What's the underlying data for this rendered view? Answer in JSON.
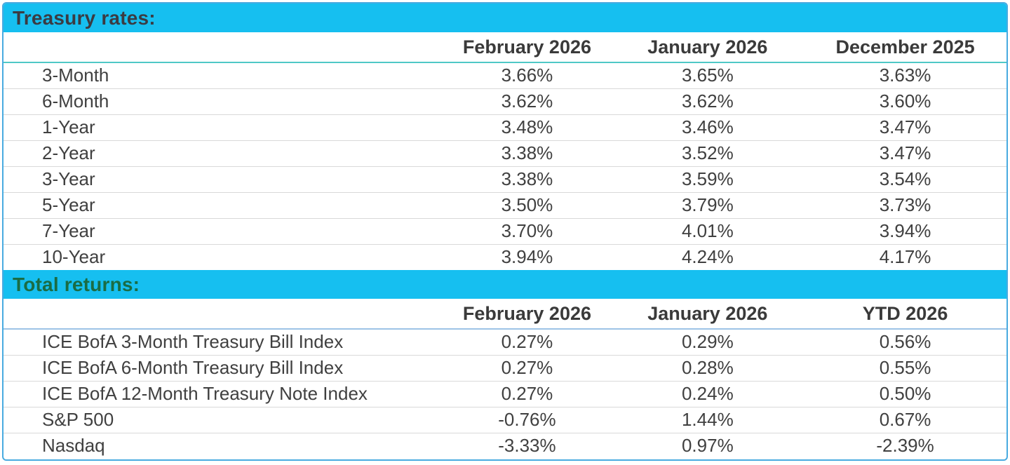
{
  "meta": {
    "band_color": "#16bff0",
    "outer_border_color": "#49abe0",
    "treasury_title_color": "#3b3b42",
    "returns_title_color": "#1a6c44",
    "treasury_header_divider_color": "#4fc8c6",
    "returns_header_divider_color": "#9dc3e6",
    "row_divider_color": "#d9d9d9"
  },
  "treasury": {
    "section_title": "Treasury rates:",
    "columns": [
      "February 2026",
      "January 2026",
      "December 2025"
    ],
    "rows": [
      {
        "label": "3-Month",
        "values": [
          "3.66%",
          "3.65%",
          "3.63%"
        ]
      },
      {
        "label": "6-Month",
        "values": [
          "3.62%",
          "3.62%",
          "3.60%"
        ]
      },
      {
        "label": "1-Year",
        "values": [
          "3.48%",
          "3.46%",
          "3.47%"
        ]
      },
      {
        "label": "2-Year",
        "values": [
          "3.38%",
          "3.52%",
          "3.47%"
        ]
      },
      {
        "label": "3-Year",
        "values": [
          "3.38%",
          "3.59%",
          "3.54%"
        ]
      },
      {
        "label": "5-Year",
        "values": [
          "3.50%",
          "3.79%",
          "3.73%"
        ]
      },
      {
        "label": "7-Year",
        "values": [
          "3.70%",
          "4.01%",
          "3.94%"
        ]
      },
      {
        "label": "10-Year",
        "values": [
          "3.94%",
          "4.24%",
          "4.17%"
        ]
      }
    ]
  },
  "returns": {
    "section_title": "Total returns:",
    "columns": [
      "February 2026",
      "January 2026",
      "YTD 2026"
    ],
    "rows": [
      {
        "label": "ICE BofA 3-Month Treasury Bill Index",
        "values": [
          "0.27%",
          "0.29%",
          "0.56%"
        ]
      },
      {
        "label": "ICE BofA 6-Month Treasury Bill Index",
        "values": [
          "0.27%",
          "0.28%",
          "0.55%"
        ]
      },
      {
        "label": "ICE BofA 12-Month Treasury Note Index",
        "values": [
          "0.27%",
          "0.24%",
          "0.50%"
        ]
      },
      {
        "label": "S&P 500",
        "values": [
          "-0.76%",
          "1.44%",
          "0.67%"
        ]
      },
      {
        "label": "Nasdaq",
        "values": [
          "-3.33%",
          "0.97%",
          "-2.39%"
        ]
      }
    ]
  }
}
